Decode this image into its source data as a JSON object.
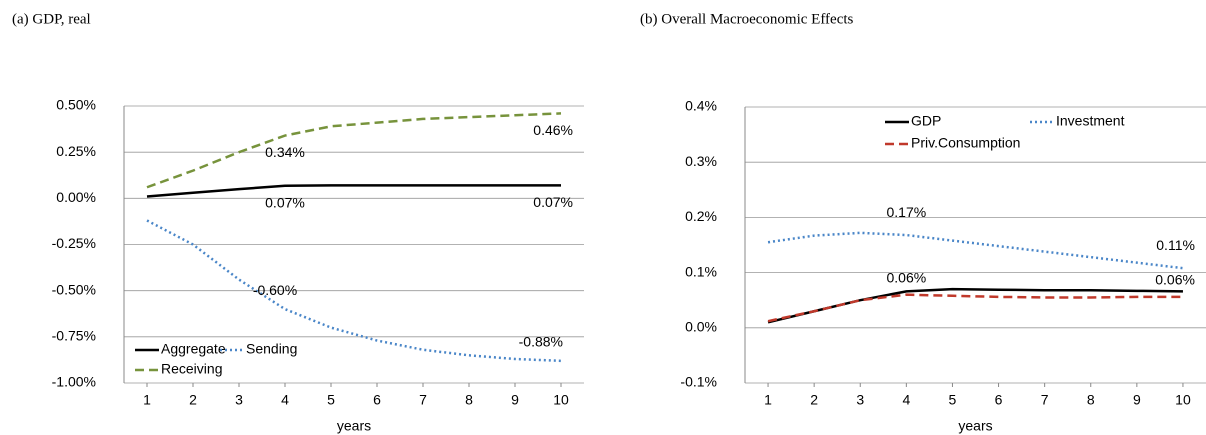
{
  "chart_data": [
    {
      "type": "line",
      "title": "(a) GDP, real",
      "xlabel": "years",
      "x": [
        1,
        2,
        3,
        4,
        5,
        6,
        7,
        8,
        9,
        10
      ],
      "xlim": [
        0.5,
        10.5
      ],
      "xticks": [
        1,
        2,
        3,
        4,
        5,
        6,
        7,
        8,
        9,
        10
      ],
      "ylim": [
        -1,
        0.5
      ],
      "yticks": [
        {
          "value": -1,
          "label": "-1.00%"
        },
        {
          "value": -0.75,
          "label": "-0.75%"
        },
        {
          "value": -0.5,
          "label": "-0.50%"
        },
        {
          "value": -0.25,
          "label": "-0.25%"
        },
        {
          "value": 0,
          "label": "0.00%"
        },
        {
          "value": 0.25,
          "label": "0.25%"
        },
        {
          "value": 0.5,
          "label": "0.50%"
        }
      ],
      "grid": true,
      "legend": "lower left",
      "series": [
        {
          "name": "Aggregate",
          "color": "#000000",
          "dash": "solid",
          "values": [
            0.01,
            0.03,
            0.05,
            0.068,
            0.07,
            0.07,
            0.07,
            0.07,
            0.07,
            0.07
          ],
          "value_labels": [
            null,
            null,
            null,
            "0.07%",
            null,
            null,
            null,
            null,
            null,
            "0.07%"
          ]
        },
        {
          "name": "Sending",
          "color": "#4a86c8",
          "dash": "dotted",
          "values": [
            -0.12,
            -0.25,
            -0.44,
            -0.6,
            -0.7,
            -0.77,
            -0.82,
            -0.85,
            -0.87,
            -0.88
          ],
          "value_labels": [
            null,
            null,
            null,
            "-0.60%",
            null,
            null,
            null,
            null,
            null,
            "-0.88%"
          ]
        },
        {
          "name": "Receiving",
          "color": "#77933c",
          "dash": "dashed",
          "values": [
            0.06,
            0.15,
            0.25,
            0.34,
            0.39,
            0.41,
            0.43,
            0.44,
            0.45,
            0.46
          ],
          "value_labels": [
            null,
            null,
            null,
            "0.34%",
            null,
            null,
            null,
            null,
            null,
            "0.46%"
          ]
        }
      ]
    },
    {
      "type": "line",
      "title": "(b) Overall Macroeconomic Effects",
      "xlabel": "years",
      "x": [
        1,
        2,
        3,
        4,
        5,
        6,
        7,
        8,
        9,
        10
      ],
      "xlim": [
        0.5,
        10.5
      ],
      "xticks": [
        1,
        2,
        3,
        4,
        5,
        6,
        7,
        8,
        9,
        10
      ],
      "ylim": [
        -0.1,
        0.4
      ],
      "yticks": [
        {
          "value": -0.1,
          "label": "-0.1%"
        },
        {
          "value": 0,
          "label": "0.0%"
        },
        {
          "value": 0.1,
          "label": "0.1%"
        },
        {
          "value": 0.2,
          "label": "0.2%"
        },
        {
          "value": 0.3,
          "label": "0.3%"
        },
        {
          "value": 0.4,
          "label": "0.4%"
        }
      ],
      "grid": true,
      "legend": "upper center",
      "series": [
        {
          "name": "GDP",
          "color": "#000000",
          "dash": "solid",
          "values": [
            0.01,
            0.03,
            0.05,
            0.066,
            0.07,
            0.069,
            0.068,
            0.068,
            0.067,
            0.066
          ]
        },
        {
          "name": "Investment",
          "color": "#4a86c8",
          "dash": "dotted",
          "values": [
            0.155,
            0.167,
            0.172,
            0.168,
            0.158,
            0.148,
            0.138,
            0.128,
            0.118,
            0.108
          ],
          "value_labels": [
            null,
            null,
            null,
            "0.17%",
            null,
            null,
            null,
            null,
            null,
            "0.11%"
          ]
        },
        {
          "name": "Priv.Consumption",
          "color": "#c0392b",
          "dash": "dashed",
          "values": [
            0.012,
            0.03,
            0.05,
            0.06,
            0.058,
            0.056,
            0.055,
            0.055,
            0.056,
            0.056
          ],
          "value_labels": [
            null,
            null,
            null,
            "0.06%",
            null,
            null,
            null,
            null,
            null,
            "0.06%"
          ]
        }
      ]
    }
  ]
}
